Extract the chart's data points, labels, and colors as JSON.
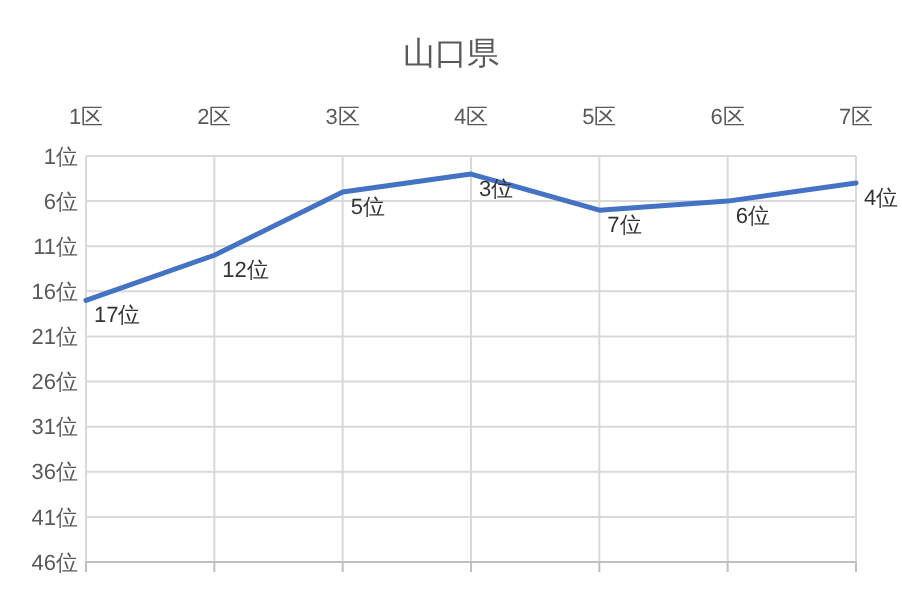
{
  "chart_data": {
    "type": "line",
    "title": "山口県",
    "categories": [
      "1区",
      "2区",
      "3区",
      "4区",
      "5区",
      "6区",
      "7区"
    ],
    "series": [
      {
        "color": "#4472c4",
        "values": [
          17,
          12,
          5,
          3,
          7,
          6,
          4
        ],
        "value_labels": [
          "17位",
          "12位",
          "5位",
          "3位",
          "7位",
          "6位",
          "4位"
        ]
      }
    ],
    "ylim": [
      46,
      1
    ],
    "yticks": [
      {
        "value": 1,
        "label": "1位"
      },
      {
        "value": 6,
        "label": "6位"
      },
      {
        "value": 11,
        "label": "11位"
      },
      {
        "value": 16,
        "label": "16位"
      },
      {
        "value": 21,
        "label": "21位"
      },
      {
        "value": 26,
        "label": "26位"
      },
      {
        "value": 31,
        "label": "31位"
      },
      {
        "value": 36,
        "label": "36位"
      },
      {
        "value": 41,
        "label": "41位"
      },
      {
        "value": 46,
        "label": "46位"
      }
    ],
    "grid": true
  }
}
